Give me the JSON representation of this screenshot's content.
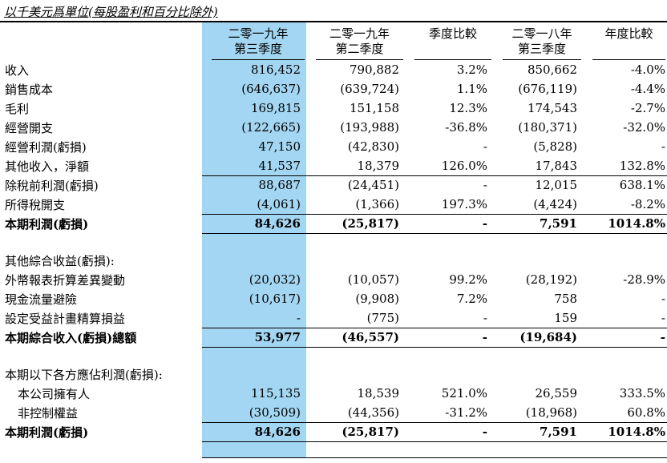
{
  "title": "以千美元爲單位(每股盈利和百分比除外)",
  "table": {
    "highlight_color": "#a3d6f2",
    "columns": [
      {
        "line1": "",
        "line2": ""
      },
      {
        "line1": "二零一九年",
        "line2": "第三季度"
      },
      {
        "line1": "二零一九年",
        "line2": "第二季度"
      },
      {
        "line1": "季度比較",
        "line2": ""
      },
      {
        "line1": "二零一八年",
        "line2": "第三季度"
      },
      {
        "line1": "年度比較",
        "line2": ""
      }
    ],
    "rows": [
      {
        "label": "收入",
        "values": [
          "816,452",
          "790,882",
          "3.2%",
          "850,662",
          "-4.0%"
        ]
      },
      {
        "label": "銷售成本",
        "values": [
          "(646,637)",
          "(639,724)",
          "1.1%",
          "(676,119)",
          "-4.4%"
        ]
      },
      {
        "label": "毛利",
        "values": [
          "169,815",
          "151,158",
          "12.3%",
          "174,543",
          "-2.7%"
        ]
      },
      {
        "label": "經營開支",
        "values": [
          "(122,665)",
          "(193,988)",
          "-36.8%",
          "(180,371)",
          "-32.0%"
        ]
      },
      {
        "label": "經營利潤(虧損)",
        "values": [
          "47,150",
          "(42,830)",
          "-",
          "(5,828)",
          "-"
        ]
      },
      {
        "label": "其他收入，淨額",
        "values": [
          "41,537",
          "18,379",
          "126.0%",
          "17,843",
          "132.8%"
        ],
        "border_bottom": true
      },
      {
        "label": "除稅前利潤(虧損)",
        "values": [
          "88,687",
          "(24,451)",
          "-",
          "12,015",
          "638.1%"
        ]
      },
      {
        "label": "所得稅開支",
        "values": [
          "(4,061)",
          "(1,366)",
          "197.3%",
          "(4,424)",
          "-8.2%"
        ],
        "border_bottom": true
      },
      {
        "label": "本期利潤(虧損)",
        "values": [
          "84,626",
          "(25,817)",
          "-",
          "7,591",
          "1014.8%"
        ],
        "bold": true,
        "border_bottom": true
      },
      {
        "type": "spacer"
      },
      {
        "label": "其他綜合收益(虧損):"
      },
      {
        "label": "外幣報表折算差異變動",
        "values": [
          "(20,032)",
          "(10,057)",
          "99.2%",
          "(28,192)",
          "-28.9%"
        ]
      },
      {
        "label": "現金流量避險",
        "values": [
          "(10,617)",
          "(9,908)",
          "7.2%",
          "758",
          "-"
        ]
      },
      {
        "label": "設定受益計畫精算損益",
        "values": [
          "-",
          "(775)",
          "-",
          "159",
          "-"
        ],
        "border_bottom": true
      },
      {
        "label": "本期綜合收入(虧損)總額",
        "values": [
          "53,977",
          "(46,557)",
          "-",
          "(19,684)",
          "-"
        ],
        "bold": true,
        "border_bottom": true
      },
      {
        "type": "spacer"
      },
      {
        "label": "本期以下各方應佔利潤(虧損):"
      },
      {
        "label": "本公司擁有人",
        "values": [
          "115,135",
          "18,539",
          "521.0%",
          "26,559",
          "333.5%"
        ],
        "indent": true
      },
      {
        "label": "非控制權益",
        "values": [
          "(30,509)",
          "(44,356)",
          "-31.2%",
          "(18,968)",
          "60.8%"
        ],
        "indent": true,
        "border_bottom": true
      },
      {
        "label": "本期利潤(虧損)",
        "values": [
          "84,626",
          "(25,817)",
          "-",
          "7,591",
          "1014.8%"
        ],
        "bold": true,
        "border_bottom": true
      },
      {
        "type": "spacer",
        "bottom": true,
        "border_bottom": true
      }
    ]
  }
}
